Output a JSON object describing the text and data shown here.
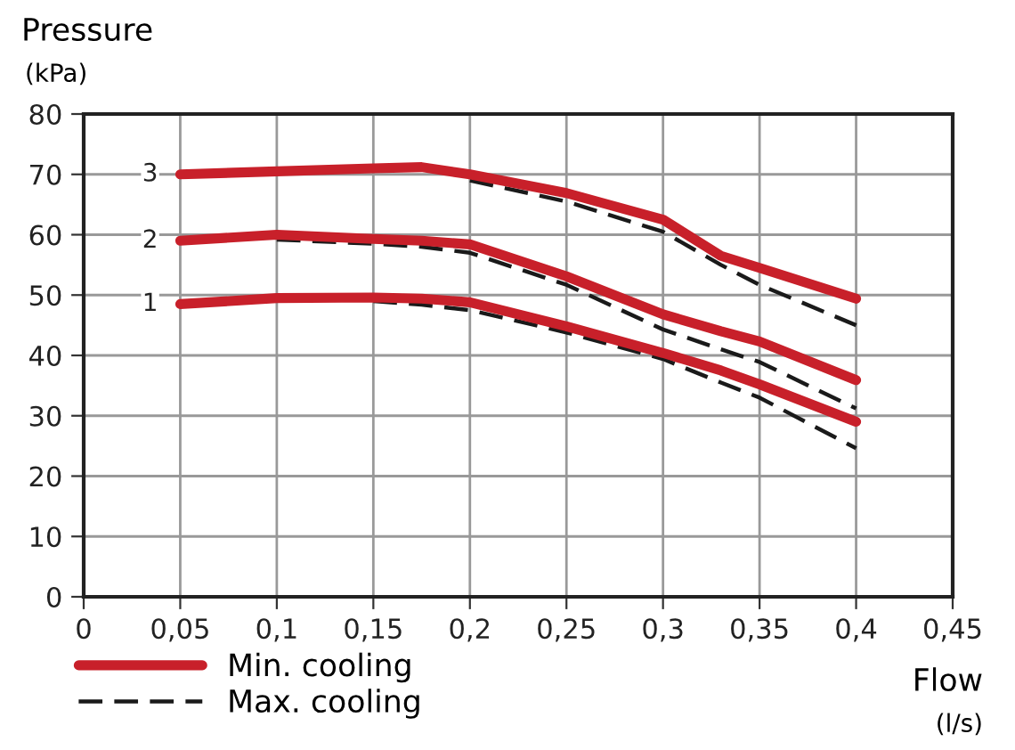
{
  "chart_data": {
    "type": "line",
    "ylabel": "Pressure\n(kPa)",
    "xlabel": "Flow\n(l/s)",
    "xlim": [
      0,
      0.45
    ],
    "ylim": [
      0,
      80
    ],
    "xticks": [
      0,
      {
        "value": 0.05,
        "label": "0,05"
      },
      {
        "value": 0.1,
        "label": "0,1"
      },
      {
        "value": 0.15,
        "label": "0,15"
      },
      {
        "value": 0.2,
        "label": "0,2"
      },
      {
        "value": 0.25,
        "label": "0,25"
      },
      {
        "value": 0.3,
        "label": "0,3"
      },
      {
        "value": 0.35,
        "label": "0,35"
      },
      {
        "value": 0.4,
        "label": "0,4"
      },
      {
        "value": 0.45,
        "label": "0,45"
      }
    ],
    "yticks": [
      0,
      10,
      20,
      30,
      40,
      50,
      60,
      70,
      80
    ],
    "grid": true,
    "legend": "bottom left",
    "marker": "none",
    "x": [
      0.05,
      0.1,
      0.15,
      0.175,
      0.2,
      0.25,
      0.3,
      0.33,
      0.35,
      0.4
    ],
    "series": [
      {
        "name": "Min. cooling",
        "color": "#c8202a",
        "line_style": "solid",
        "values": [
          70,
          70.5,
          71,
          71.2,
          70,
          66.9,
          62.5,
          56.5,
          54.5,
          49.4
        ]
      },
      {
        "color": "#c8202a",
        "line_style": "solid",
        "values": [
          59,
          60,
          59.3,
          59,
          58.4,
          53.1,
          46.8,
          44,
          42.3,
          35.9
        ]
      },
      {
        "color": "#c8202a",
        "line_style": "solid",
        "values": [
          48.5,
          49.5,
          49.6,
          49.4,
          48.8,
          44.8,
          40.4,
          37.5,
          35.2,
          29
        ]
      },
      {
        "name": "Max. cooling",
        "color": "#1a1a1a",
        "line_style": "dashed",
        "values": [
          null,
          null,
          null,
          null,
          69,
          65.5,
          60.5,
          55,
          51.7,
          45
        ]
      },
      {
        "color": "#1a1a1a",
        "line_style": "dashed",
        "values": [
          null,
          59.2,
          58.5,
          58,
          57,
          51.7,
          44.3,
          41,
          38.9,
          31.2
        ]
      },
      {
        "color": "#1a1a1a",
        "line_style": "dashed",
        "values": [
          null,
          null,
          49,
          48.4,
          47.5,
          43.8,
          39.4,
          35.5,
          33,
          24.6
        ]
      }
    ],
    "annotations": [
      "3",
      "2",
      "1"
    ]
  }
}
